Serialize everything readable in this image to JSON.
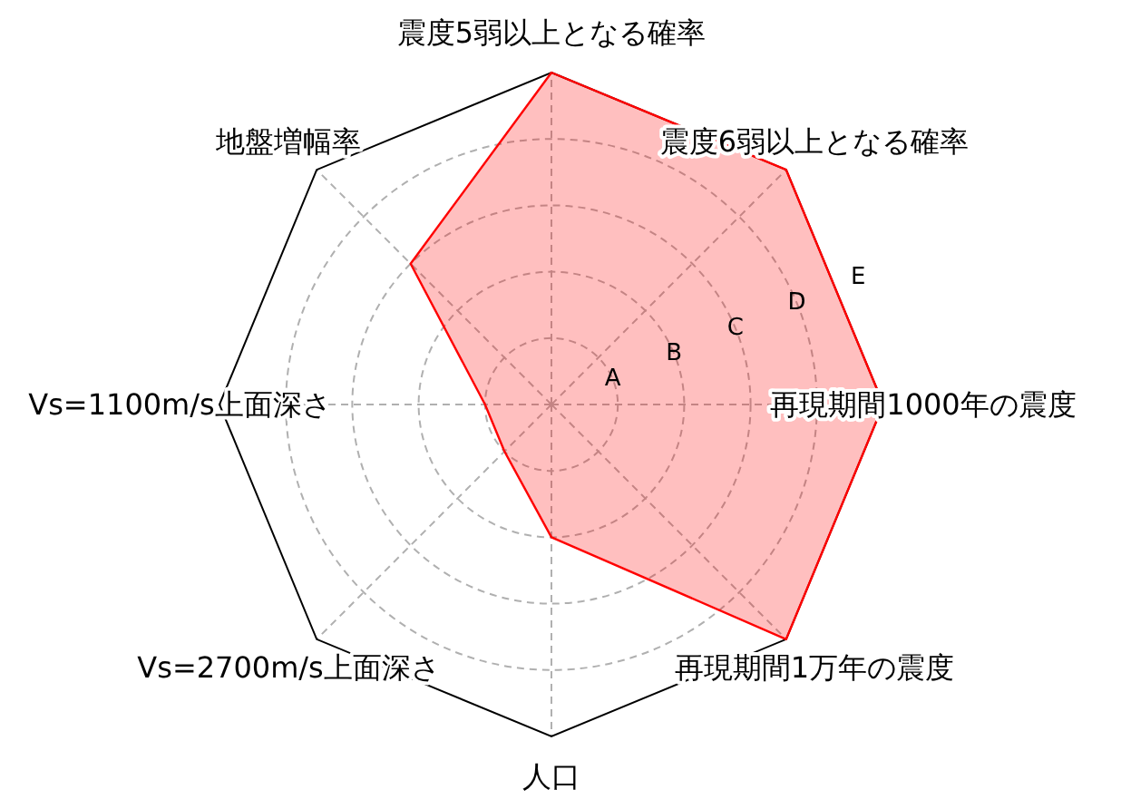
{
  "chart_data": {
    "type": "radar",
    "categories": [
      "震度5弱以上となる確率",
      "震度6弱以上となる確率",
      "再現期間1000年の震度",
      "再現期間1万年の震度",
      "人口",
      "Vs=2700m/s上面深さ",
      "Vs=1100m/s上面深さ",
      "地盤増幅率"
    ],
    "series": [
      {
        "color": "#ff0000",
        "values": [
          5,
          5,
          5,
          5,
          2,
          1,
          1,
          3
        ]
      }
    ],
    "ylim": [
      0,
      5
    ],
    "yticks": [
      {
        "value": 1,
        "label": "A"
      },
      {
        "value": 2,
        "label": "B"
      },
      {
        "value": 3,
        "label": "C"
      },
      {
        "value": 4,
        "label": "D"
      },
      {
        "value": 5,
        "label": "E"
      }
    ],
    "grid": true
  }
}
